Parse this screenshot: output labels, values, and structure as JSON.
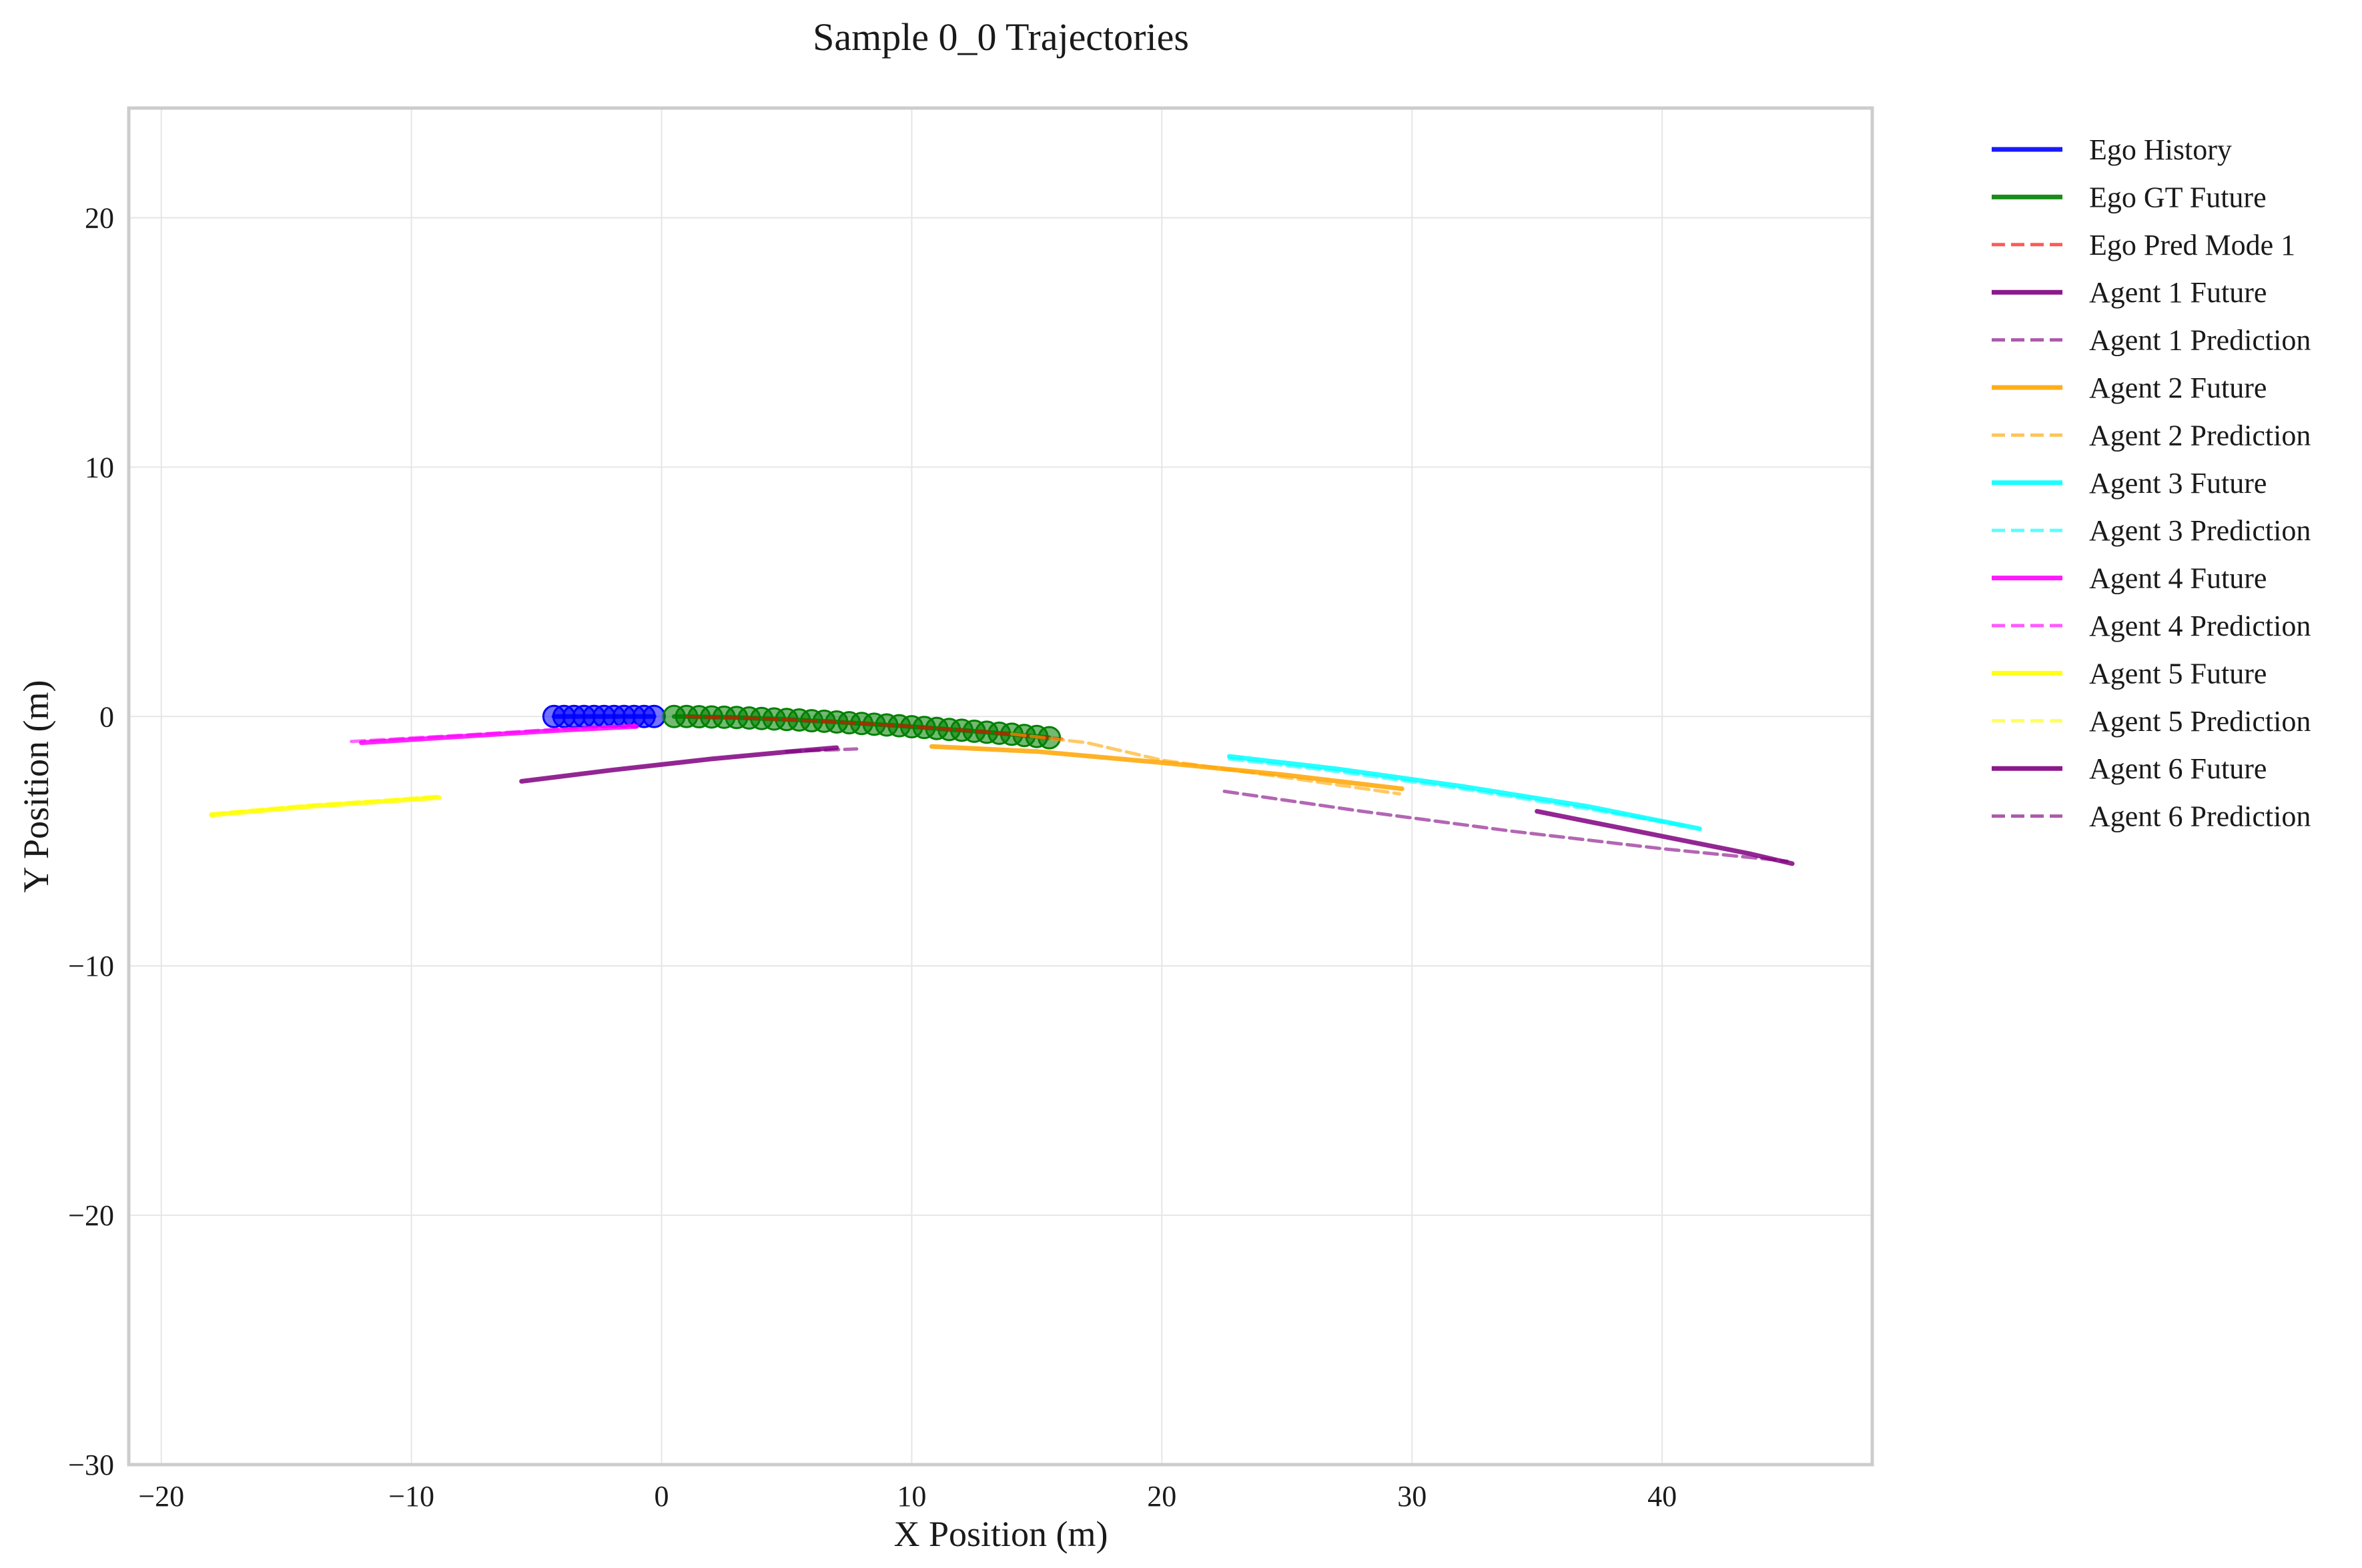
{
  "chart_data": {
    "type": "line",
    "title": "Sample 0_0 Trajectories",
    "xlabel": "X Position (m)",
    "ylabel": "Y Position (m)",
    "xlim": [
      -21.3,
      48.4
    ],
    "ylim": [
      -30,
      24.4
    ],
    "xticks": [
      -20,
      -10,
      0,
      10,
      20,
      30,
      40
    ],
    "xtick_labels": [
      "−20",
      "−10",
      "0",
      "10",
      "20",
      "30",
      "40"
    ],
    "yticks": [
      -30,
      -20,
      -10,
      0,
      10,
      20
    ],
    "ytick_labels": [
      "−30",
      "−20",
      "−10",
      "0",
      "10",
      "20"
    ],
    "grid": true,
    "legend_position": "outside-right",
    "series": [
      {
        "name": "Ego History",
        "color": "#0000ff",
        "style": "solid",
        "markers": true,
        "x": [
          -4.3,
          -3.9,
          -3.5,
          -3.1,
          -2.7,
          -2.3,
          -1.9,
          -1.5,
          -1.1,
          -0.7,
          -0.3
        ],
        "y": [
          0,
          0,
          0,
          0,
          0,
          0,
          0,
          0,
          0,
          0,
          0
        ]
      },
      {
        "name": "Ego GT Future",
        "color": "#008000",
        "style": "solid",
        "markers": true,
        "x": [
          0.5,
          1.0,
          1.5,
          2.0,
          2.5,
          3.0,
          3.5,
          4.0,
          4.5,
          5.0,
          5.5,
          6.0,
          6.5,
          7.0,
          7.5,
          8.0,
          8.5,
          9.0,
          9.5,
          10.0,
          10.5,
          11.0,
          11.5,
          12.0,
          12.5,
          13.0,
          13.5,
          14.0,
          14.5,
          15.0,
          15.5
        ],
        "y": [
          0.0,
          -0.0,
          -0.01,
          -0.02,
          -0.03,
          -0.04,
          -0.06,
          -0.08,
          -0.1,
          -0.12,
          -0.14,
          -0.17,
          -0.19,
          -0.22,
          -0.25,
          -0.28,
          -0.31,
          -0.34,
          -0.37,
          -0.41,
          -0.44,
          -0.48,
          -0.52,
          -0.55,
          -0.59,
          -0.63,
          -0.67,
          -0.71,
          -0.76,
          -0.8,
          -0.85
        ]
      },
      {
        "name": "Ego Pred Mode 1",
        "color": "#ff0000",
        "style": "dashed",
        "markers": false,
        "x": [
          1.0,
          4.0,
          7.0,
          10.0,
          13.0,
          16.0
        ],
        "y": [
          0.0,
          -0.08,
          -0.22,
          -0.4,
          -0.62,
          -0.9
        ]
      },
      {
        "name": "Agent 1 Future",
        "color": "#800080",
        "style": "solid",
        "markers": false,
        "x": [
          -5.6,
          -2.0,
          2.0,
          5.0,
          7.0
        ],
        "y": [
          -2.6,
          -2.15,
          -1.7,
          -1.42,
          -1.25
        ]
      },
      {
        "name": "Agent 1 Prediction",
        "color": "#800080",
        "style": "dashed",
        "markers": false,
        "x": [
          5.0,
          6.5,
          7.8
        ],
        "y": [
          -1.4,
          -1.35,
          -1.3
        ]
      },
      {
        "name": "Agent 2 Future",
        "color": "#ffa500",
        "style": "solid",
        "markers": false,
        "x": [
          10.8,
          15.0,
          20.0,
          25.0,
          29.6
        ],
        "y": [
          -1.2,
          -1.4,
          -1.85,
          -2.35,
          -2.9
        ]
      },
      {
        "name": "Agent 2 Prediction",
        "color": "#ffa500",
        "style": "dashed",
        "markers": false,
        "x": [
          14.0,
          17.0,
          20.0,
          25.0,
          29.5
        ],
        "y": [
          -0.7,
          -1.05,
          -1.75,
          -2.45,
          -3.1
        ]
      },
      {
        "name": "Agent 3 Future",
        "color": "#00ffff",
        "style": "solid",
        "markers": false,
        "x": [
          22.7,
          27.0,
          32.0,
          37.0,
          41.5
        ],
        "y": [
          -1.6,
          -2.1,
          -2.8,
          -3.6,
          -4.5
        ]
      },
      {
        "name": "Agent 3 Prediction",
        "color": "#00ffff",
        "style": "dashed",
        "markers": false,
        "x": [
          22.7,
          27.0,
          32.0,
          37.0,
          41.0
        ],
        "y": [
          -1.7,
          -2.2,
          -2.9,
          -3.7,
          -4.4
        ]
      },
      {
        "name": "Agent 4 Future",
        "color": "#ff00ff",
        "style": "solid",
        "markers": false,
        "x": [
          -12.0,
          -8.0,
          -4.0,
          -1.0
        ],
        "y": [
          -1.05,
          -0.8,
          -0.55,
          -0.4
        ]
      },
      {
        "name": "Agent 4 Prediction",
        "color": "#ff00ff",
        "style": "dashed",
        "markers": false,
        "x": [
          -12.4,
          -8.0,
          -4.0,
          -1.0
        ],
        "y": [
          -1.0,
          -0.75,
          -0.5,
          -0.35
        ]
      },
      {
        "name": "Agent 5 Future",
        "color": "#ffff00",
        "style": "solid",
        "markers": false,
        "x": [
          -18.0,
          -14.0,
          -11.0,
          -8.9
        ],
        "y": [
          -3.95,
          -3.6,
          -3.4,
          -3.25
        ]
      },
      {
        "name": "Agent 5 Prediction",
        "color": "#ffff00",
        "style": "dashed",
        "markers": false,
        "x": [
          -18.0,
          -14.0,
          -11.0,
          -9.0
        ],
        "y": [
          -3.9,
          -3.55,
          -3.35,
          -3.2
        ]
      },
      {
        "name": "Agent 6 Future",
        "color": "#800080",
        "style": "solid",
        "markers": false,
        "x": [
          35.0,
          38.0,
          41.0,
          43.5,
          45.2
        ],
        "y": [
          -3.8,
          -4.4,
          -5.0,
          -5.5,
          -5.9
        ]
      },
      {
        "name": "Agent 6 Prediction",
        "color": "#800080",
        "style": "dashed",
        "markers": false,
        "x": [
          22.5,
          28.0,
          34.0,
          40.0,
          45.0
        ],
        "y": [
          -3.0,
          -3.8,
          -4.6,
          -5.3,
          -5.8
        ]
      }
    ]
  }
}
